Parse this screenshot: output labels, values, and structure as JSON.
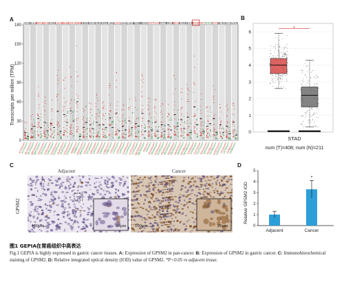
{
  "panels": {
    "a": "A",
    "b": "B",
    "c": "C",
    "d": "D"
  },
  "chart_data": [
    {
      "panel": "A",
      "type": "scatter",
      "ylabel": "Transcripts per million (TPM)",
      "yticks": [
        0,
        30,
        60,
        90,
        120,
        150,
        180
      ],
      "ylim": [
        0,
        180
      ],
      "grid": true,
      "cancers": [
        {
          "name": "ACC",
          "color": "#222222",
          "t": 12,
          "n": 6
        },
        {
          "name": "BLCA",
          "color": "#222222",
          "t": 18,
          "n": 22
        },
        {
          "name": "BRCA",
          "color": "#d0332f",
          "t": 34,
          "n": 20
        },
        {
          "name": "CESC",
          "color": "#d0332f",
          "t": 28,
          "n": 15
        },
        {
          "name": "CHOL",
          "color": "#222222",
          "t": 26,
          "n": 20
        },
        {
          "name": "COAD",
          "color": "#d0332f",
          "t": 45,
          "n": 14
        },
        {
          "name": "DLBC",
          "color": "#d0332f",
          "t": 40,
          "n": 28
        },
        {
          "name": "ESCA",
          "color": "#d0332f",
          "t": 46,
          "n": 30
        },
        {
          "name": "GBM",
          "color": "#d0332f",
          "t": 60,
          "n": 6
        },
        {
          "name": "HNSC",
          "color": "#222222",
          "t": 20,
          "n": 28
        },
        {
          "name": "KICH",
          "color": "#222222",
          "t": 24,
          "n": 18
        },
        {
          "name": "KIRC",
          "color": "#222222",
          "t": 28,
          "n": 24
        },
        {
          "name": "KIRP",
          "color": "#222222",
          "t": 24,
          "n": 20
        },
        {
          "name": "LAML",
          "color": "#222222",
          "t": 35,
          "n": 20
        },
        {
          "name": "LGG",
          "color": "#d0332f",
          "t": 42,
          "n": 15
        },
        {
          "name": "LIHC",
          "color": "#222222",
          "t": 22,
          "n": 16
        },
        {
          "name": "LUAD",
          "color": "#222222",
          "t": 30,
          "n": 20
        },
        {
          "name": "LUSC",
          "color": "#222222",
          "t": 26,
          "n": 22
        },
        {
          "name": "MESO",
          "color": "#222222",
          "t": 42,
          "n": 14
        },
        {
          "name": "OV",
          "color": "#d0332f",
          "t": 30,
          "n": 16
        },
        {
          "name": "PAAD",
          "color": "#d0332f",
          "t": 28,
          "n": 14
        },
        {
          "name": "PCPG",
          "color": "#222222",
          "t": 24,
          "n": 14
        },
        {
          "name": "PRAD",
          "color": "#222222",
          "t": 24,
          "n": 16
        },
        {
          "name": "READ",
          "color": "#d0332f",
          "t": 40,
          "n": 22
        },
        {
          "name": "SARC",
          "color": "#222222",
          "t": 32,
          "n": 18
        },
        {
          "name": "SKCM",
          "color": "#222222",
          "t": 36,
          "n": 12
        },
        {
          "name": "STAD",
          "color": "#d0332f",
          "t": 52,
          "n": 24,
          "highlight": true
        },
        {
          "name": "TGCT",
          "color": "#d0332f",
          "t": 34,
          "n": 14
        },
        {
          "name": "THCA",
          "color": "#2a8c3a",
          "t": 22,
          "n": 26
        },
        {
          "name": "THYM",
          "color": "#d0332f",
          "t": 34,
          "n": 12
        },
        {
          "name": "UCEC",
          "color": "#222222",
          "t": 24,
          "n": 12
        },
        {
          "name": "UCS",
          "color": "#222222",
          "t": 22,
          "n": 10
        },
        {
          "name": "UVM",
          "color": "#222222",
          "t": 28,
          "n": 8
        }
      ]
    },
    {
      "panel": "B",
      "type": "box",
      "xlabel": "STAD",
      "subtitle": "num (T)=408; num (N)=211",
      "yticks": [
        0,
        1,
        2,
        3,
        4,
        5,
        6
      ],
      "ylim": [
        0,
        6.5
      ],
      "significance": "*",
      "series": [
        {
          "name": "T",
          "color": "#d94b4b",
          "q1": 3.5,
          "median": 4.0,
          "q3": 4.4,
          "min": 2.6,
          "max": 5.9
        },
        {
          "name": "N",
          "color": "#6e6e6e",
          "q1": 1.5,
          "median": 2.2,
          "q3": 2.7,
          "min": 0.3,
          "max": 4.3
        }
      ]
    },
    {
      "panel": "D",
      "type": "bar",
      "categories": [
        "Adjacent",
        "Cancer"
      ],
      "values": [
        1.0,
        3.3
      ],
      "errors": [
        0.3,
        0.8
      ],
      "ylabel": "Relative GPSM2 IOD",
      "yticks": [
        0,
        1,
        2,
        3,
        4,
        5
      ],
      "ylim": [
        0,
        5
      ],
      "significance": "*",
      "color": "#2d9fd8"
    }
  ],
  "histology": {
    "row_label": "GPSM2",
    "adjacent_title": "Adjacent",
    "cancer_title": "Cancer",
    "scale_main": "100µm",
    "scale_inset": "20µm"
  },
  "caption": {
    "cn": "图1  GEPIA在胃癌组织中高表达",
    "en_fig": "Fig.1",
    "en_title": "GEPIA is highly expressed in gastric cancer tissues.",
    "a_key": "A:",
    "a_text": "Expression of GPSM2 in pan-cancer.",
    "b_key": "B:",
    "b_text": "Expression of GPSM2 in gastric cancer.",
    "c_key": "C:",
    "c_text": "Immunohistochemical staining of GPSM2.",
    "d_key": "D:",
    "d_text": "Relative integrated optical density (IOD) value of GPSM2.",
    "p_text": "*P<0.05",
    "vs_text": "vs adjacent tissue."
  }
}
